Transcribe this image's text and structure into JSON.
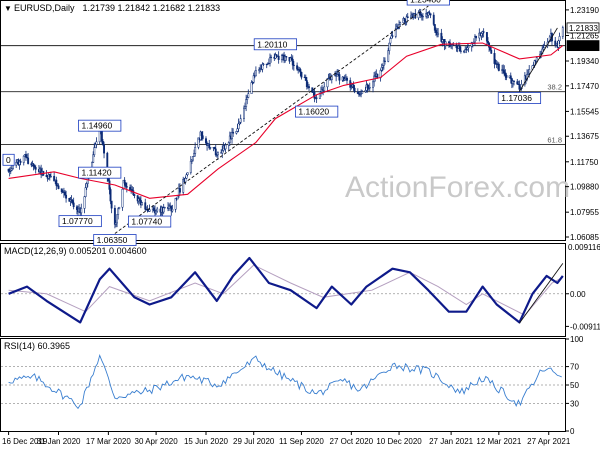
{
  "header": {
    "symbol": "EURUSD,Daily",
    "ohlc": "1.21739 1.21842 1.21682 1.21833"
  },
  "watermark": "ActionForex.com",
  "colors": {
    "candle": "#0b2a75",
    "ma": "#e8002a",
    "macd": "#0e1a8a",
    "signal": "#b5a0c0",
    "rsi": "#3a7fd0",
    "levels": "#222222"
  },
  "chart_data": [
    {
      "type": "candlestick",
      "title": "EURUSD,Daily",
      "ylim": [
        1.0586,
        1.2386
      ],
      "y_ticks": [
        "1.23190",
        "1.21265",
        "1.19340",
        "1.17470",
        "1.15545",
        "1.13675",
        "1.11750",
        "1.09880",
        "1.07955",
        "1.06085"
      ],
      "price_labels": [
        {
          "text": "1.21833",
          "value": 1.21833,
          "style": "current"
        },
        {
          "text": "1.20500",
          "value": 1.205,
          "style": "level"
        }
      ],
      "x_tick_labels": [
        "16 Dec 2019",
        "31 Jan 2020",
        "17 Mar 2020",
        "30 Apr 2020",
        "15 Jun 2020",
        "29 Jul 2020",
        "11 Sep 2020",
        "27 Oct 2020",
        "10 Dec 2020",
        "27 Jan 2021",
        "12 Mar 2021",
        "27 Apr 2021"
      ],
      "horizontal_lines": [
        {
          "value": 1.205,
          "label": ""
        },
        {
          "value": 1.1703,
          "label": "38.2"
        },
        {
          "value": 1.1305,
          "label": "61.8"
        }
      ],
      "annotations": [
        {
          "text": "1.23480",
          "date": "2021-01-06",
          "price": 1.2348
        },
        {
          "text": "1.20110",
          "date": "2020-08-18",
          "price": 1.2011
        },
        {
          "text": "1.16020",
          "date": "2020-09-25",
          "price": 1.1602
        },
        {
          "text": "1.17036",
          "date": "2021-03-31",
          "price": 1.1704
        },
        {
          "text": "1.14960",
          "date": "2020-03-09",
          "price": 1.1496
        },
        {
          "text": "1.11420",
          "date": "2020-03-09",
          "price": 1.1142
        },
        {
          "text": "1.07770",
          "date": "2020-02-20",
          "price": 1.0777
        },
        {
          "text": "1.07740",
          "date": "2020-04-24",
          "price": 1.0774
        },
        {
          "text": "1.06350",
          "date": "2020-03-23",
          "price": 1.0635
        },
        {
          "text": "0",
          "date": "2019-12-16",
          "price": 1.1239
        }
      ],
      "trendlines": [
        {
          "from": {
            "date": "2020-03-23",
            "price": 1.0635
          },
          "to": {
            "date": "2021-01-06",
            "price": 1.2348
          }
        },
        {
          "from": {
            "date": "2021-03-31",
            "price": 1.1704
          },
          "to": {
            "date": "2021-05-05",
            "price": 1.2183
          }
        }
      ],
      "price_path": [
        [
          "2019-12-16",
          1.112
        ],
        [
          "2019-12-31",
          1.121
        ],
        [
          "2020-01-10",
          1.112
        ],
        [
          "2020-01-27",
          1.103
        ],
        [
          "2020-02-20",
          1.079
        ],
        [
          "2020-03-09",
          1.145
        ],
        [
          "2020-03-23",
          1.068
        ],
        [
          "2020-03-31",
          1.102
        ],
        [
          "2020-04-10",
          1.093
        ],
        [
          "2020-04-24",
          1.08
        ],
        [
          "2020-05-14",
          1.082
        ],
        [
          "2020-05-29",
          1.11
        ],
        [
          "2020-06-10",
          1.138
        ],
        [
          "2020-06-26",
          1.122
        ],
        [
          "2020-07-15",
          1.145
        ],
        [
          "2020-07-31",
          1.186
        ],
        [
          "2020-08-18",
          1.197
        ],
        [
          "2020-09-01",
          1.195
        ],
        [
          "2020-09-25",
          1.165
        ],
        [
          "2020-10-09",
          1.183
        ],
        [
          "2020-10-20",
          1.18
        ],
        [
          "2020-11-04",
          1.168
        ],
        [
          "2020-11-23",
          1.185
        ],
        [
          "2020-12-04",
          1.214
        ],
        [
          "2020-12-17",
          1.226
        ],
        [
          "2021-01-06",
          1.23
        ],
        [
          "2021-01-18",
          1.208
        ],
        [
          "2021-02-02",
          1.204
        ],
        [
          "2021-02-05",
          1.2
        ],
        [
          "2021-02-25",
          1.215
        ],
        [
          "2021-03-10",
          1.19
        ],
        [
          "2021-03-31",
          1.173
        ],
        [
          "2021-04-12",
          1.19
        ],
        [
          "2021-04-22",
          1.203
        ],
        [
          "2021-04-29",
          1.212
        ],
        [
          "2021-05-05",
          1.205
        ],
        [
          "2021-05-10",
          1.218
        ]
      ],
      "moving_average": [
        [
          "2019-12-16",
          1.105
        ],
        [
          "2020-01-27",
          1.11
        ],
        [
          "2020-02-20",
          1.105
        ],
        [
          "2020-03-23",
          1.1
        ],
        [
          "2020-04-24",
          1.09
        ],
        [
          "2020-05-29",
          1.093
        ],
        [
          "2020-06-26",
          1.112
        ],
        [
          "2020-07-31",
          1.132
        ],
        [
          "2020-08-18",
          1.15
        ],
        [
          "2020-09-25",
          1.168
        ],
        [
          "2020-10-20",
          1.175
        ],
        [
          "2020-11-23",
          1.181
        ],
        [
          "2020-12-17",
          1.197
        ],
        [
          "2021-01-18",
          1.206
        ],
        [
          "2021-02-25",
          1.207
        ],
        [
          "2021-03-31",
          1.195
        ],
        [
          "2021-04-29",
          1.198
        ],
        [
          "2021-05-10",
          1.205
        ]
      ]
    },
    {
      "type": "line",
      "title": "MACD(12,26,9) 0.005201 0.004600",
      "ylim": [
        -0.0118,
        0.0139
      ],
      "y_ticks": [
        "0.00",
        "-0.009116"
      ],
      "y_tick_values": [
        0.0,
        -0.009116
      ],
      "top_label": "0.009116",
      "series": [
        {
          "name": "",
          "values": [
            [
              "2019-12-16",
              0.0
            ],
            [
              "2020-01-02",
              0.002
            ],
            [
              "2020-01-20",
              -0.002
            ],
            [
              "2020-02-20",
              -0.008
            ],
            [
              "2020-03-09",
              0.004
            ],
            [
              "2020-03-18",
              0.007
            ],
            [
              "2020-04-10",
              -0.001
            ],
            [
              "2020-04-24",
              -0.003
            ],
            [
              "2020-05-14",
              -0.001
            ],
            [
              "2020-06-05",
              0.006
            ],
            [
              "2020-06-25",
              -0.002
            ],
            [
              "2020-07-10",
              0.005
            ],
            [
              "2020-07-25",
              0.01
            ],
            [
              "2020-08-12",
              0.003
            ],
            [
              "2020-09-01",
              0.001
            ],
            [
              "2020-09-25",
              -0.004
            ],
            [
              "2020-10-09",
              0.002
            ],
            [
              "2020-10-27",
              -0.003
            ],
            [
              "2020-11-10",
              0.002
            ],
            [
              "2020-12-04",
              0.007
            ],
            [
              "2020-12-20",
              0.006
            ],
            [
              "2021-01-06",
              0.001
            ],
            [
              "2021-01-25",
              -0.005
            ],
            [
              "2021-02-10",
              -0.005
            ],
            [
              "2021-02-25",
              0.002
            ],
            [
              "2021-03-10",
              -0.003
            ],
            [
              "2021-03-31",
              -0.008
            ],
            [
              "2021-04-12",
              0.0
            ],
            [
              "2021-04-25",
              0.005
            ],
            [
              "2021-05-05",
              0.003
            ],
            [
              "2021-05-10",
              0.005
            ]
          ]
        },
        {
          "name": "",
          "values": [
            [
              "2019-12-16",
              0.001
            ],
            [
              "2020-01-20",
              0.0
            ],
            [
              "2020-02-25",
              -0.005
            ],
            [
              "2020-03-18",
              0.002
            ],
            [
              "2020-04-24",
              -0.002
            ],
            [
              "2020-06-05",
              0.003
            ],
            [
              "2020-07-01",
              0.0
            ],
            [
              "2020-07-29",
              0.008
            ],
            [
              "2020-09-01",
              0.003
            ],
            [
              "2020-10-01",
              -0.001
            ],
            [
              "2020-11-15",
              0.001
            ],
            [
              "2020-12-20",
              0.006
            ],
            [
              "2021-01-15",
              0.002
            ],
            [
              "2021-02-10",
              -0.003
            ],
            [
              "2021-02-25",
              0.0
            ],
            [
              "2021-04-05",
              -0.006
            ],
            [
              "2021-04-30",
              0.003
            ],
            [
              "2021-05-10",
              0.0046
            ]
          ]
        }
      ],
      "trendlines": [
        {
          "from": {
            "date": "2021-03-31",
            "value": -0.0082
          },
          "to": {
            "date": "2021-05-10",
            "value": 0.0085
          }
        }
      ]
    },
    {
      "type": "line",
      "title": "RSI(14) 60.3965",
      "ylim": [
        0,
        100
      ],
      "y_ticks": [
        "100",
        "70",
        "50",
        "30",
        "0"
      ],
      "y_tick_values": [
        100,
        70,
        50,
        30,
        0
      ],
      "levels": [
        70,
        50,
        30
      ],
      "series": [
        {
          "name": "",
          "values": [
            [
              "2019-12-16",
              55
            ],
            [
              "2020-01-10",
              58
            ],
            [
              "2020-02-20",
              27
            ],
            [
              "2020-03-09",
              82
            ],
            [
              "2020-03-23",
              37
            ],
            [
              "2020-04-24",
              44
            ],
            [
              "2020-05-29",
              60
            ],
            [
              "2020-06-26",
              50
            ],
            [
              "2020-07-31",
              78
            ],
            [
              "2020-08-18",
              64
            ],
            [
              "2020-09-25",
              40
            ],
            [
              "2020-10-20",
              55
            ],
            [
              "2020-11-04",
              44
            ],
            [
              "2020-12-04",
              72
            ],
            [
              "2021-01-06",
              65
            ],
            [
              "2021-02-05",
              42
            ],
            [
              "2021-02-25",
              58
            ],
            [
              "2021-03-31",
              29
            ],
            [
              "2021-04-22",
              68
            ],
            [
              "2021-05-10",
              60
            ]
          ]
        }
      ]
    }
  ]
}
